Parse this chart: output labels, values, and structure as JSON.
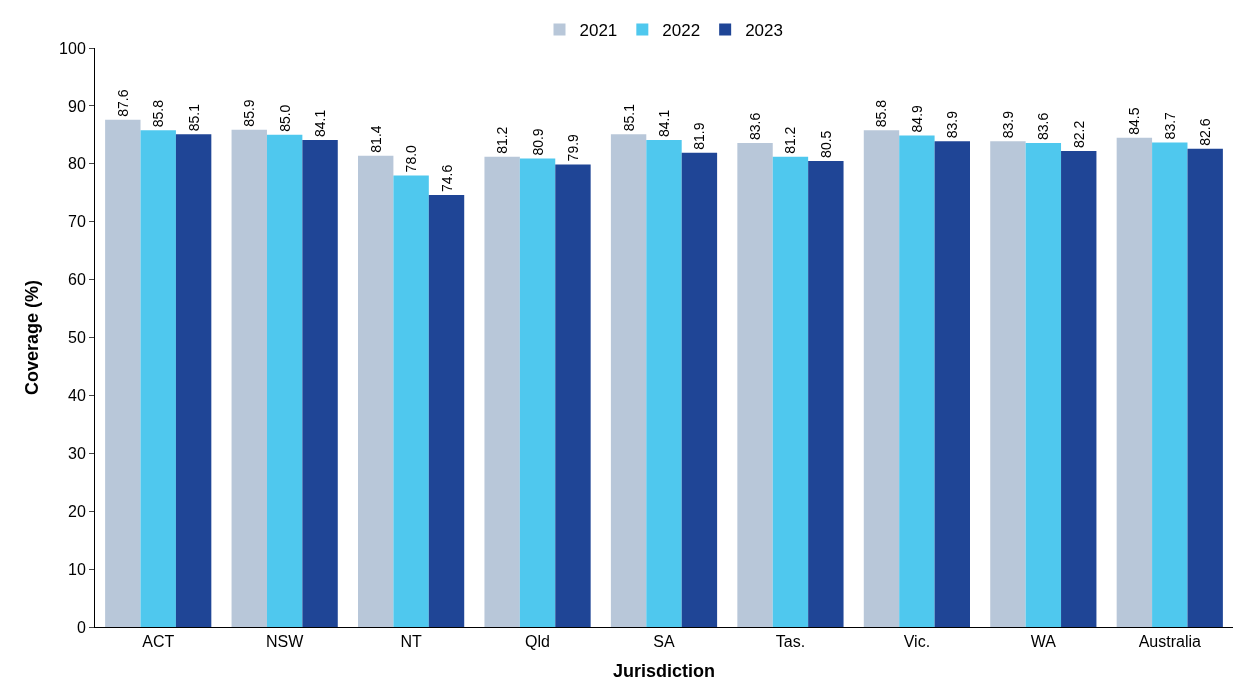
{
  "chart_data": {
    "type": "bar",
    "xlabel": "Jurisdiction",
    "ylabel": "Coverage (%)",
    "categories": [
      "ACT",
      "NSW",
      "NT",
      "Qld",
      "SA",
      "Tas.",
      "Vic.",
      "WA",
      "Australia"
    ],
    "series": [
      {
        "name": "2021",
        "color": "#b8c7d9",
        "values": [
          87.6,
          85.9,
          81.4,
          81.2,
          85.1,
          83.6,
          85.8,
          83.9,
          84.5
        ],
        "value_labels": [
          "87.6",
          "85.9",
          "81.4",
          "81.2",
          "85.1",
          "83.6",
          "85.8",
          "83.9",
          "84.5"
        ]
      },
      {
        "name": "2022",
        "color": "#4fc8ee",
        "values": [
          85.8,
          85.0,
          78.0,
          80.9,
          84.1,
          81.2,
          84.9,
          83.6,
          83.7
        ],
        "value_labels": [
          "85.8",
          "85.0",
          "78.0",
          "80.9",
          "84.1",
          "81.2",
          "84.9",
          "83.6",
          "83.7"
        ]
      },
      {
        "name": "2023",
        "color": "#1f4596",
        "values": [
          85.1,
          84.1,
          74.6,
          79.9,
          81.9,
          80.5,
          83.9,
          82.2,
          82.6
        ],
        "value_labels": [
          "85.1",
          "84.1",
          "74.6",
          "79.9",
          "81.9",
          "80.5",
          "83.9",
          "82.2",
          "82.6"
        ]
      }
    ],
    "ylim": [
      0,
      100
    ],
    "yticks": [
      0,
      10,
      20,
      30,
      40,
      50,
      60,
      70,
      80,
      90,
      100
    ],
    "legend": "top"
  }
}
